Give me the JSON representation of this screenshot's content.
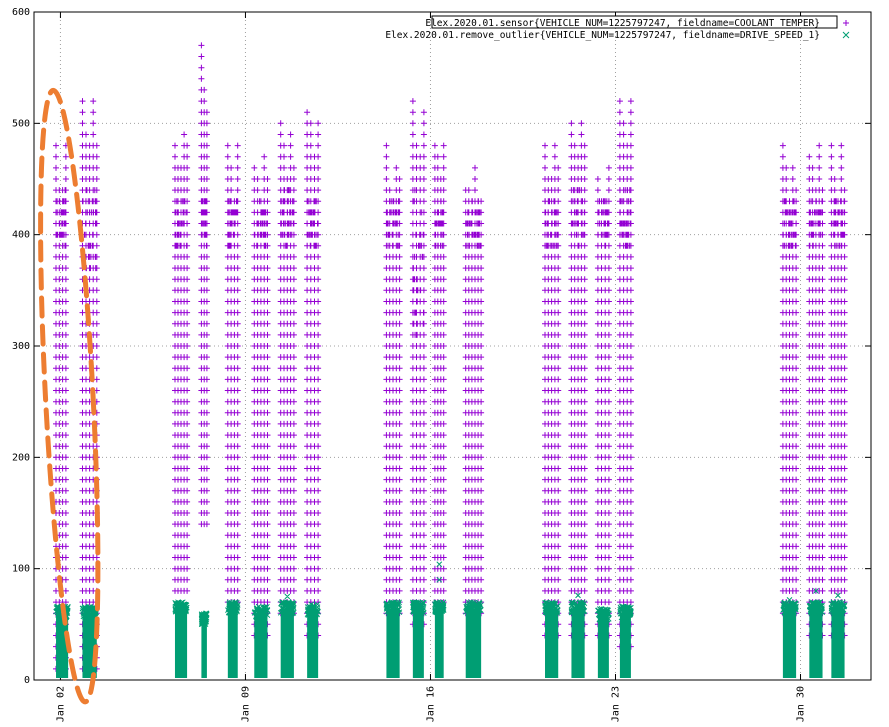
{
  "chart_data": {
    "type": "scatter",
    "title": "",
    "xlabel": "",
    "ylabel": "",
    "ylim": [
      0,
      600
    ],
    "xlim": [
      "2020-01-01T00:00",
      "2020-02-01T16:00"
    ],
    "yticks": [
      0,
      100,
      200,
      300,
      400,
      500,
      600
    ],
    "xticks": [
      {
        "label": "Jan 02",
        "date": "2020-01-02"
      },
      {
        "label": "Jan 09",
        "date": "2020-01-09"
      },
      {
        "label": "Jan 16",
        "date": "2020-01-16"
      },
      {
        "label": "Jan 23",
        "date": "2020-01-23"
      },
      {
        "label": "Jan 30",
        "date": "2020-01-30"
      }
    ],
    "grid": true,
    "legend_position": "top-right",
    "series": [
      {
        "name": "Elex.2020.01.sensor{VEHICLE_NUM=1225797247, fieldname=COOLANT_TEMPER}",
        "marker": "+",
        "color": "#9400d3",
        "clusters": [
          {
            "start": "2020-01-01T20:00",
            "end": "2020-01-02T05:00",
            "min": 10,
            "max": 480,
            "dense_min": 390,
            "dense_max": 440
          },
          {
            "start": "2020-01-02T20:00",
            "end": "2020-01-03T09:00",
            "min": 10,
            "max": 520,
            "dense_min": 370,
            "dense_max": 440
          },
          {
            "start": "2020-01-06T08:00",
            "end": "2020-01-06T19:00",
            "min": 80,
            "max": 500,
            "dense_min": 390,
            "dense_max": 430
          },
          {
            "start": "2020-01-07T08:00",
            "end": "2020-01-07T13:00",
            "min": 140,
            "max": 570,
            "dense_min": 390,
            "dense_max": 430
          },
          {
            "start": "2020-01-08T08:00",
            "end": "2020-01-08T17:00",
            "min": 70,
            "max": 490,
            "dense_min": 390,
            "dense_max": 430
          },
          {
            "start": "2020-01-09T08:00",
            "end": "2020-01-09T20:00",
            "min": 40,
            "max": 470,
            "dense_min": 390,
            "dense_max": 430
          },
          {
            "start": "2020-01-10T08:00",
            "end": "2020-01-10T20:00",
            "min": 60,
            "max": 500,
            "dense_min": 390,
            "dense_max": 440
          },
          {
            "start": "2020-01-11T08:00",
            "end": "2020-01-11T18:00",
            "min": 40,
            "max": 520,
            "dense_min": 390,
            "dense_max": 430
          },
          {
            "start": "2020-01-14T08:00",
            "end": "2020-01-14T20:00",
            "min": 60,
            "max": 480,
            "dense_min": 390,
            "dense_max": 430
          },
          {
            "start": "2020-01-15T08:00",
            "end": "2020-01-15T18:00",
            "min": 50,
            "max": 520,
            "dense_min": 310,
            "dense_max": 440
          },
          {
            "start": "2020-01-16T04:00",
            "end": "2020-01-16T12:00",
            "min": 70,
            "max": 500,
            "dense_min": 390,
            "dense_max": 430
          },
          {
            "start": "2020-01-17T08:00",
            "end": "2020-01-17T22:00",
            "min": 60,
            "max": 460,
            "dense_min": 390,
            "dense_max": 430
          },
          {
            "start": "2020-01-20T08:00",
            "end": "2020-01-20T20:00",
            "min": 40,
            "max": 490,
            "dense_min": 390,
            "dense_max": 430
          },
          {
            "start": "2020-01-21T08:00",
            "end": "2020-01-21T20:00",
            "min": 40,
            "max": 520,
            "dense_min": 390,
            "dense_max": 440
          },
          {
            "start": "2020-01-22T08:00",
            "end": "2020-01-22T18:00",
            "min": 40,
            "max": 460,
            "dense_min": 390,
            "dense_max": 430
          },
          {
            "start": "2020-01-23T04:00",
            "end": "2020-01-23T14:00",
            "min": 30,
            "max": 530,
            "dense_min": 390,
            "dense_max": 440
          },
          {
            "start": "2020-01-29T08:00",
            "end": "2020-01-29T20:00",
            "min": 60,
            "max": 480,
            "dense_min": 390,
            "dense_max": 430
          },
          {
            "start": "2020-01-30T08:00",
            "end": "2020-01-30T20:00",
            "min": 40,
            "max": 480,
            "dense_min": 390,
            "dense_max": 430
          },
          {
            "start": "2020-01-31T04:00",
            "end": "2020-01-31T16:00",
            "min": 40,
            "max": 480,
            "dense_min": 390,
            "dense_max": 430
          }
        ]
      },
      {
        "name": "Elex.2020.01.remove_outlier{VEHICLE_NUM=1225797247, fieldname=DRIVE_SPEED_1}",
        "marker": "x",
        "color": "#009e73",
        "clusters": [
          {
            "start": "2020-01-01T20:00",
            "end": "2020-01-02T07:00",
            "max": 66
          },
          {
            "start": "2020-01-02T20:00",
            "end": "2020-01-03T09:00",
            "max": 66
          },
          {
            "start": "2020-01-06T08:00",
            "end": "2020-01-06T19:00",
            "max": 70
          },
          {
            "start": "2020-01-07T08:00",
            "end": "2020-01-07T13:00",
            "max": 60
          },
          {
            "start": "2020-01-08T08:00",
            "end": "2020-01-08T17:00",
            "max": 70
          },
          {
            "start": "2020-01-09T08:00",
            "end": "2020-01-09T20:00",
            "max": 66
          },
          {
            "start": "2020-01-10T08:00",
            "end": "2020-01-10T20:00",
            "max": 75
          },
          {
            "start": "2020-01-11T08:00",
            "end": "2020-01-11T18:00",
            "max": 68
          },
          {
            "start": "2020-01-14T08:00",
            "end": "2020-01-14T20:00",
            "max": 70
          },
          {
            "start": "2020-01-15T08:00",
            "end": "2020-01-15T18:00",
            "max": 70
          },
          {
            "start": "2020-01-16T04:00",
            "end": "2020-01-16T12:00",
            "max": 104
          },
          {
            "start": "2020-01-17T08:00",
            "end": "2020-01-17T22:00",
            "max": 70
          },
          {
            "start": "2020-01-20T08:00",
            "end": "2020-01-20T20:00",
            "max": 70
          },
          {
            "start": "2020-01-21T08:00",
            "end": "2020-01-21T20:00",
            "max": 76
          },
          {
            "start": "2020-01-22T08:00",
            "end": "2020-01-22T18:00",
            "max": 64
          },
          {
            "start": "2020-01-23T04:00",
            "end": "2020-01-23T14:00",
            "max": 66
          },
          {
            "start": "2020-01-29T08:00",
            "end": "2020-01-29T20:00",
            "max": 72
          },
          {
            "start": "2020-01-30T08:00",
            "end": "2020-01-30T20:00",
            "max": 80
          },
          {
            "start": "2020-01-31T04:00",
            "end": "2020-01-31T16:00",
            "max": 76
          }
        ]
      }
    ],
    "annotations": [
      {
        "shape": "dashed-ellipse",
        "color": "#ed7d31",
        "x_center": "2020-01-02T08:00",
        "y_center": 255,
        "x_halfwidth_days": 0.9,
        "y_halfheight": 275
      }
    ]
  }
}
